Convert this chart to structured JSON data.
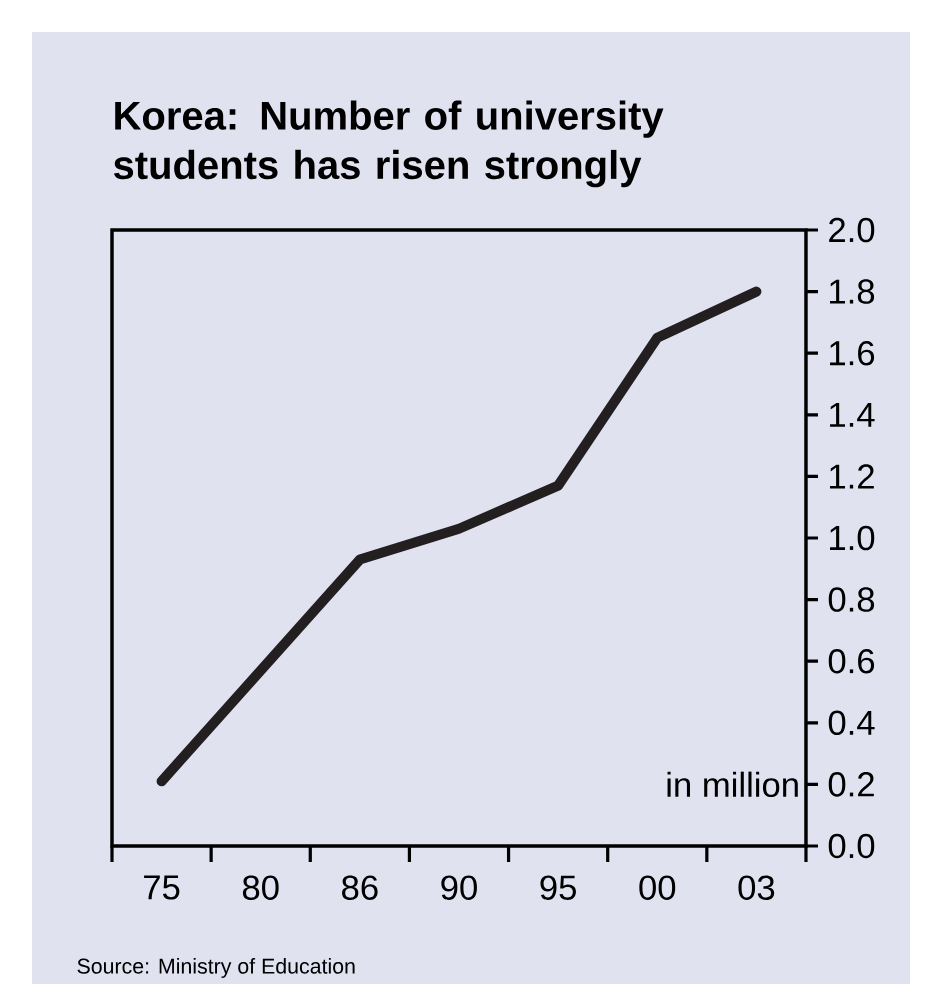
{
  "chart_data": {
    "type": "line",
    "title": "Korea: Number of university students has risen strongly",
    "categories": [
      "75",
      "80",
      "86",
      "90",
      "95",
      "00",
      "03"
    ],
    "values": [
      0.21,
      0.57,
      0.93,
      1.03,
      1.17,
      1.65,
      1.8
    ],
    "color": "#231f20",
    "ylabel": "in million",
    "ylim": [
      0,
      2
    ],
    "yticks": [
      {
        "value": 0,
        "label": "0.0"
      },
      {
        "value": 0.2,
        "label": "0.2"
      },
      {
        "value": 0.4,
        "label": "0.4"
      },
      {
        "value": 0.6,
        "label": "0.6"
      },
      {
        "value": 0.8,
        "label": "0.8"
      },
      {
        "value": 1,
        "label": "1.0"
      },
      {
        "value": 1.2,
        "label": "1.2"
      },
      {
        "value": 1.4,
        "label": "1.4"
      },
      {
        "value": 1.6,
        "label": "1.6"
      },
      {
        "value": 1.8,
        "label": "1.8"
      },
      {
        "value": 2,
        "label": "2.0"
      }
    ],
    "annotations": [
      "Source: Ministry of Education"
    ]
  }
}
